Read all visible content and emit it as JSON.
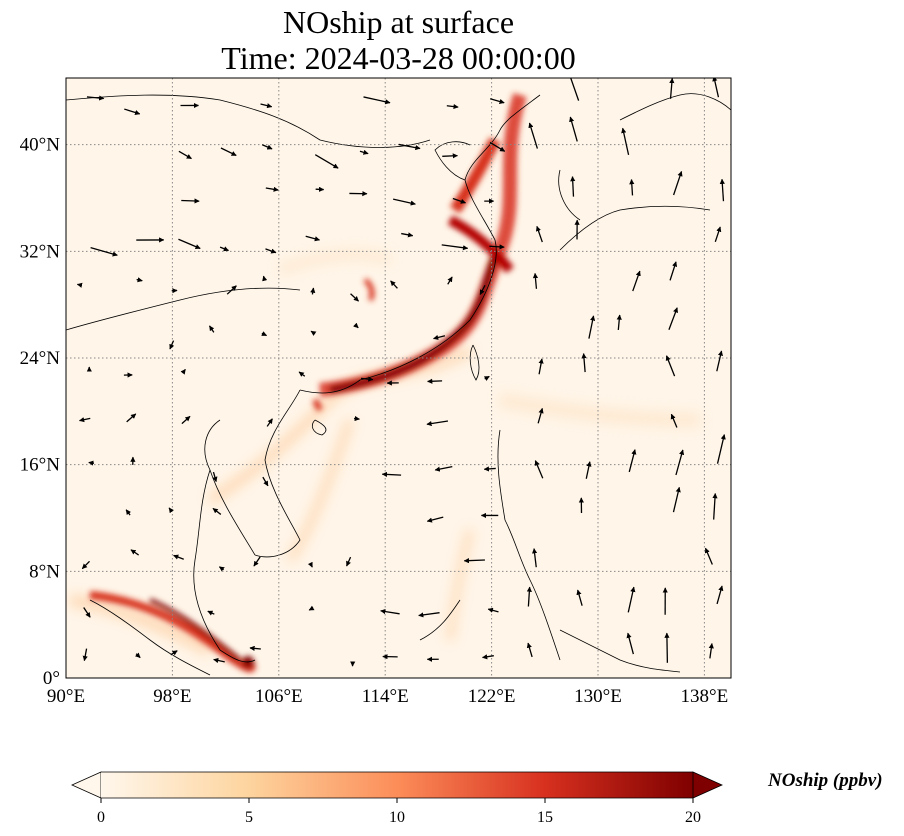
{
  "title": {
    "line1": "NOship at surface",
    "line2": "Time: 2024-03-28 00:00:00"
  },
  "map": {
    "lon_range": [
      90,
      140
    ],
    "lat_range": [
      0,
      45
    ],
    "lon_ticks": [
      90,
      98,
      106,
      114,
      122,
      130,
      138
    ],
    "lon_tick_labels": [
      "90°E",
      "98°E",
      "106°E",
      "114°E",
      "122°E",
      "130°E",
      "138°E"
    ],
    "lat_ticks": [
      0,
      8,
      16,
      24,
      32,
      40
    ],
    "lat_tick_labels": [
      "0°",
      "8°N",
      "16°N",
      "24°N",
      "32°N",
      "40°N"
    ],
    "gridlines": true
  },
  "colorbar": {
    "label": "NOship (ppbv)",
    "min": 0,
    "max": 20,
    "ticks": [
      0,
      5,
      10,
      15,
      20
    ],
    "tick_labels": [
      "0",
      "5",
      "10",
      "15",
      "20"
    ],
    "colormap_stops": [
      "#fff7ec",
      "#fdd49e",
      "#fc8d59",
      "#d7301f",
      "#7f0000"
    ],
    "extend": "both"
  },
  "colors": {
    "ocean_background": "#fff5e8",
    "grid": "#888888"
  }
}
